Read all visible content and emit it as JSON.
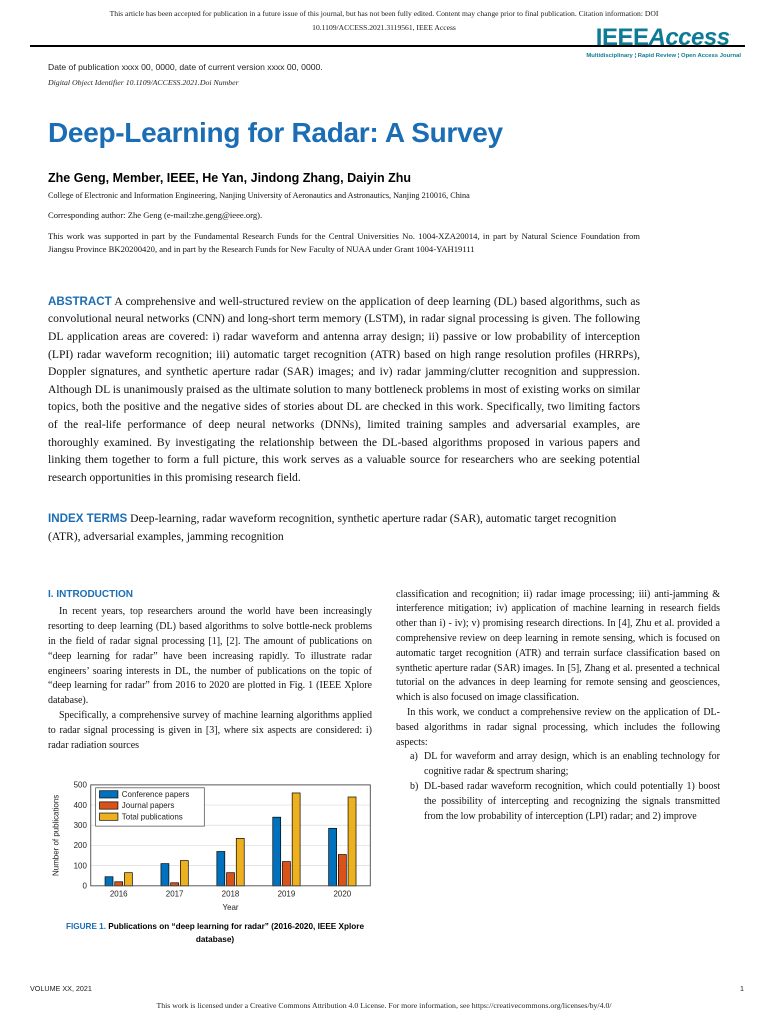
{
  "colors": {
    "accent_blue": "#1b6db4",
    "logo_teal": "#0e7b96",
    "rule_black": "#000000"
  },
  "header": {
    "notice_line1": "This article has been accepted for publication in a future issue of this journal, but has not been fully edited. Content may change prior to final publication. Citation information: DOI",
    "notice_line2": "10.1109/ACCESS.2021.3119561, IEEE Access",
    "logo": {
      "ieee": "IEEE",
      "access": "Access",
      "reg": "·",
      "tagline": "Multidisciplinary ¦ Rapid Review ¦ Open Access Journal"
    }
  },
  "pub_info": {
    "date_line": "Date of publication xxxx 00, 0000, date of current version xxxx 00, 0000.",
    "doi_line": "Digital Object Identifier 10.1109/ACCESS.2021.Doi Number"
  },
  "title": "Deep-Learning for Radar: A Survey",
  "authors": "Zhe Geng, Member, IEEE, He Yan, Jindong Zhang, Daiyin Zhu",
  "affiliation": "College of Electronic and Information Engineering, Nanjing University of Aeronautics and Astronautics, Nanjing 210016, China",
  "corresponding": "Corresponding author: Zhe Geng (e-mail:zhe.geng@ieee.org).",
  "funding": "This work was supported in part by the Fundamental Research Funds for the Central Universities No. 1004-XZA20014, in part by Natural Science Foundation from Jiangsu Province BK20200420, and in part by the Research Funds for New Faculty of NUAA under Grant 1004-YAH19111",
  "abstract": {
    "label": "ABSTRACT",
    "text": "A comprehensive and well-structured review on the application of deep learning (DL) based algorithms, such as convolutional neural networks (CNN) and long-short term memory (LSTM), in radar signal processing is given. The following DL application areas are covered: i) radar waveform and antenna array design; ii) passive or low probability of interception (LPI) radar waveform recognition; iii) automatic target recognition (ATR) based on high range resolution profiles (HRRPs), Doppler signatures, and synthetic aperture radar (SAR) images; and iv) radar jamming/clutter recognition and suppression. Although DL is unanimously praised as the ultimate solution to many bottleneck problems in most of existing works on similar topics, both the positive and the negative sides of stories about DL are checked in this work. Specifically, two limiting factors of the real-life performance of deep neural networks (DNNs), limited training samples and adversarial examples, are thoroughly examined. By investigating the relationship between the DL-based algorithms proposed in various papers and linking them together to form a full picture, this work serves as a valuable source for researchers who are seeking potential research opportunities in this promising research field."
  },
  "index_terms": {
    "label": "INDEX TERMS",
    "text": "Deep-learning, radar waveform recognition, synthetic aperture radar (SAR), automatic target recognition (ATR), adversarial examples, jamming recognition"
  },
  "body": {
    "intro_heading": "I. INTRODUCTION",
    "left_p1": "In recent years, top researchers around the world have been increasingly resorting to deep learning (DL) based algorithms to solve bottle-neck problems in the field of radar signal processing [1], [2]. The amount of publications on “deep learning for radar” have been increasing rapidly. To illustrate radar engineers’ soaring interests in DL, the number of publications on the topic of “deep learning for radar” from 2016 to 2020 are plotted in Fig. 1 (IEEE Xplore database).",
    "left_p2": "Specifically, a comprehensive survey of machine learning algorithms applied to radar signal processing is given in [3], where six aspects are considered: i) radar radiation sources",
    "right_p1": "classification and recognition; ii) radar image processing; iii) anti-jamming & interference mitigation; iv) application of machine learning in research fields other than i) - iv); v) promising research directions. In [4], Zhu et al. provided a comprehensive review on deep learning in remote sensing, which is focused on automatic target recognition (ATR) and terrain surface classification based on synthetic aperture radar (SAR) images. In [5], Zhang et al. presented a technical tutorial on the advances in deep learning for remote sensing and geosciences, which is also focused on image classification.",
    "right_p2": "In this work, we conduct a comprehensive review on the application of DL-based algorithms in radar signal processing, which includes the following aspects:",
    "list": [
      {
        "marker": "a)",
        "text": "DL for waveform and array design, which is an enabling technology for cognitive radar & spectrum sharing;"
      },
      {
        "marker": "b)",
        "text": "DL-based radar waveform recognition, which could potentially 1) boost the possibility of intercepting and recognizing the signals transmitted from the low probability of interception (LPI) radar; and 2) improve"
      }
    ]
  },
  "figure1": {
    "label": "FIGURE 1.",
    "caption": "Publications on “deep learning for radar” (2016-2020, IEEE Xplore database)"
  },
  "chart_data": {
    "type": "bar",
    "title": "",
    "categories": [
      "2016",
      "2017",
      "2018",
      "2019",
      "2020"
    ],
    "series": [
      {
        "name": "Conference papers",
        "color": "#0072BD",
        "values": [
          45,
          110,
          170,
          340,
          285
        ]
      },
      {
        "name": "Journal papers",
        "color": "#D95319",
        "values": [
          20,
          15,
          65,
          120,
          155
        ]
      },
      {
        "name": "Total publications",
        "color": "#EDB120",
        "values": [
          65,
          125,
          235,
          460,
          440
        ]
      }
    ],
    "xlabel": "Year",
    "ylabel": "Number of publications",
    "ylim": [
      0,
      500
    ],
    "ytick_step": 100,
    "grid": true,
    "legend_position": "upper-left"
  },
  "footer": {
    "volume": "VOLUME XX, 2021",
    "page": "1",
    "license": "This work is licensed under a Creative Commons Attribution 4.0 License. For more information, see https://creativecommons.org/licenses/by/4.0/"
  }
}
